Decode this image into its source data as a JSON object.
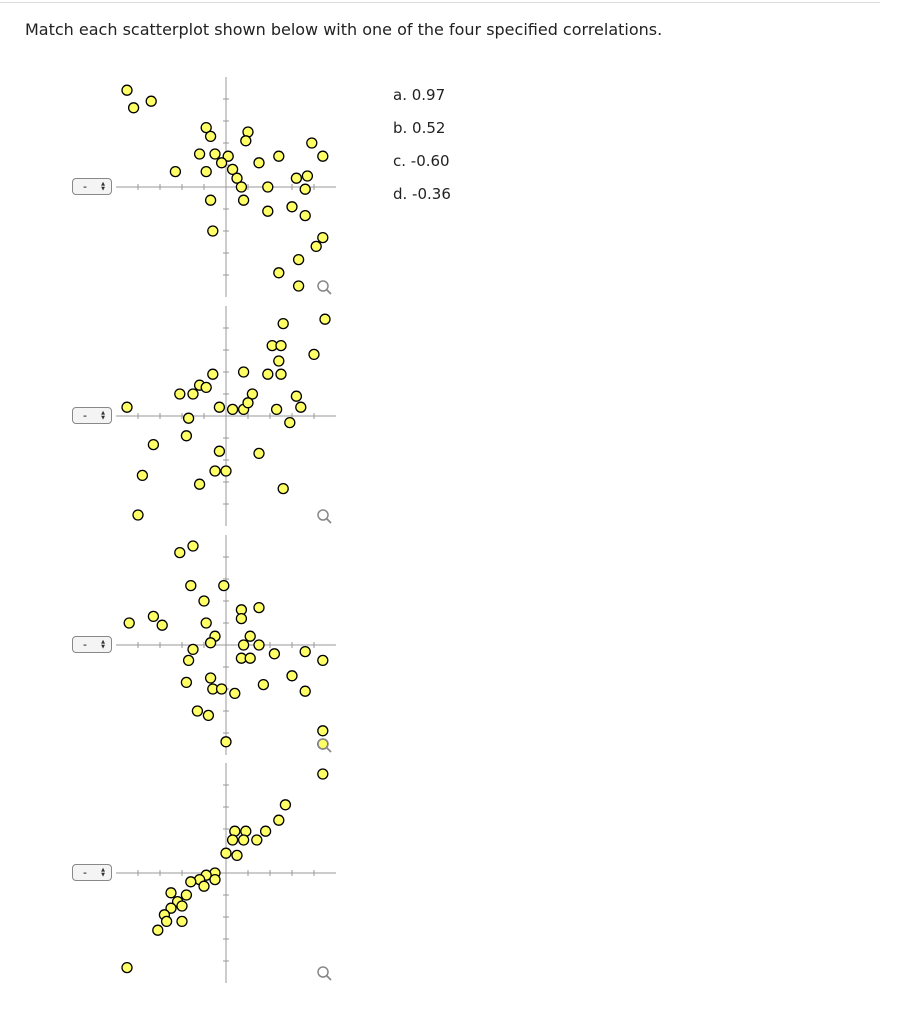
{
  "instruction": "Match each scatterplot shown below with one of the four specified correlations.",
  "answer_choices": [
    "a. 0.97",
    "b. 0.52",
    "c. -0.60",
    "d. -0.36"
  ],
  "selects": [
    "-",
    "-",
    "-",
    "-"
  ],
  "chart_data": [
    {
      "type": "scatter",
      "color": "#ffff66",
      "xlim": [
        -5,
        5
      ],
      "ylim": [
        -5,
        5
      ],
      "xticks": [
        -4,
        -3,
        -2,
        -1,
        1,
        2,
        3,
        4
      ],
      "yticks": [
        -4,
        -3,
        -2,
        -1,
        1,
        2,
        3,
        4
      ],
      "x": [
        -4.5,
        -4.2,
        -3.4,
        -0.9,
        -0.7,
        1.0,
        0.9,
        -1.2,
        -0.5,
        0.1,
        -0.2,
        -2.3,
        -0.9,
        0.3,
        0.5,
        1.5,
        2.4,
        3.9,
        4.4,
        0.7,
        1.9,
        3.2,
        3.7,
        3.6,
        -0.7,
        0.8,
        -0.6,
        1.9,
        3.0,
        3.6,
        4.4,
        4.1,
        3.3,
        2.4,
        3.3
      ],
      "y": [
        4.4,
        3.6,
        3.9,
        2.7,
        2.3,
        2.5,
        2.1,
        1.5,
        1.5,
        1.4,
        1.1,
        0.7,
        0.7,
        0.8,
        0.4,
        1.1,
        1.4,
        2.0,
        1.4,
        0.0,
        0.0,
        0.4,
        0.5,
        -0.1,
        -0.6,
        -0.6,
        -2.0,
        -1.1,
        -0.9,
        -1.3,
        -2.3,
        -2.7,
        -3.3,
        -3.9,
        -4.5
      ]
    },
    {
      "type": "scatter",
      "color": "#ffff66",
      "xlim": [
        -5,
        5
      ],
      "ylim": [
        -5,
        5
      ],
      "xticks": [
        -4,
        -3,
        -2,
        -1,
        1,
        2,
        3,
        4
      ],
      "yticks": [
        -4,
        -3,
        -2,
        -1,
        1,
        2,
        3,
        4
      ],
      "x": [
        4.5,
        2.6,
        2.1,
        2.5,
        4.0,
        2.4,
        -0.6,
        0.8,
        1.9,
        2.5,
        -2.1,
        -1.5,
        -1.2,
        -0.9,
        1.2,
        3.2,
        -4.5,
        -0.3,
        0.3,
        0.8,
        1.0,
        2.3,
        3.4,
        -1.7,
        2.9,
        -1.8,
        -3.3,
        -0.3,
        1.5,
        -0.5,
        0.0,
        -3.8,
        -1.2,
        2.6,
        -4.0
      ],
      "y": [
        4.4,
        4.2,
        3.2,
        3.2,
        2.8,
        2.5,
        1.9,
        2.0,
        1.9,
        1.9,
        1.0,
        1.0,
        1.4,
        1.3,
        1.0,
        0.9,
        0.4,
        0.4,
        0.3,
        0.3,
        0.6,
        0.3,
        0.4,
        -0.1,
        -0.3,
        -0.9,
        -1.3,
        -1.6,
        -1.7,
        -2.5,
        -2.5,
        -2.7,
        -3.1,
        -3.3,
        -4.5
      ]
    },
    {
      "type": "scatter",
      "color": "#ffff66",
      "xlim": [
        -5,
        5
      ],
      "ylim": [
        -5,
        5
      ],
      "xticks": [
        -4,
        -3,
        -2,
        -1,
        1,
        2,
        3,
        4
      ],
      "yticks": [
        -4,
        -3,
        -2,
        -1,
        1,
        2,
        3,
        4
      ],
      "x": [
        -2.1,
        -1.5,
        -1.6,
        -0.1,
        -1.0,
        -4.4,
        -3.3,
        -2.9,
        0.7,
        1.5,
        0.7,
        -0.9,
        1.1,
        -0.5,
        -0.7,
        -1.5,
        0.8,
        0.7,
        1.1,
        1.5,
        2.2,
        3.6,
        4.4,
        -1.7,
        -1.8,
        -0.7,
        -0.6,
        0.4,
        -0.2,
        1.7,
        3.0,
        3.6,
        -1.3,
        -0.8,
        0.0,
        4.4,
        4.4
      ],
      "y": [
        4.2,
        4.5,
        2.7,
        2.7,
        2.0,
        1.0,
        1.3,
        0.9,
        1.6,
        1.7,
        1.2,
        1.0,
        0.4,
        0.4,
        0.1,
        -0.2,
        0.0,
        -0.6,
        -0.6,
        0.0,
        -0.4,
        -0.3,
        -0.7,
        -0.7,
        -1.7,
        -1.5,
        -2.0,
        -2.2,
        -2.0,
        -1.8,
        -1.4,
        -2.1,
        -3.0,
        -3.2,
        -4.4,
        -3.9,
        -4.5
      ]
    },
    {
      "type": "scatter",
      "color": "#ffff66",
      "xlim": [
        -5,
        5
      ],
      "ylim": [
        -5,
        5
      ],
      "xticks": [
        -4,
        -3,
        -2,
        -1,
        1,
        2,
        3,
        4
      ],
      "yticks": [
        -4,
        -3,
        -2,
        -1,
        1,
        2,
        3,
        4
      ],
      "x": [
        4.4,
        2.7,
        2.4,
        1.8,
        0.4,
        0.9,
        0.3,
        0.8,
        1.4,
        0.5,
        0.0,
        -0.5,
        -0.9,
        -1.2,
        -0.5,
        -1.0,
        -1.6,
        -2.5,
        -1.8,
        -2.2,
        -2.0,
        -2.5,
        -2.8,
        -2.0,
        -2.7,
        -3.1,
        -4.5
      ],
      "y": [
        4.5,
        3.1,
        2.4,
        1.9,
        1.9,
        1.9,
        1.5,
        1.5,
        1.5,
        0.8,
        0.9,
        0.0,
        -0.1,
        -0.3,
        -0.3,
        -0.6,
        -0.4,
        -0.9,
        -1.0,
        -1.3,
        -1.5,
        -1.6,
        -1.9,
        -2.2,
        -2.2,
        -2.6,
        -4.3
      ]
    }
  ]
}
